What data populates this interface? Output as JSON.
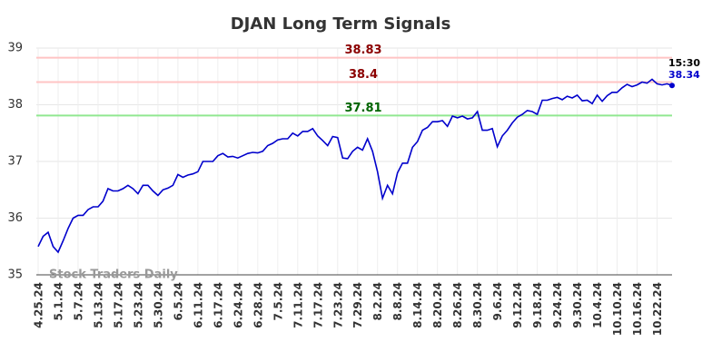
{
  "chart_data": {
    "type": "line",
    "title": "DJAN Long Term Signals",
    "categories": [
      "4.25.24",
      null,
      null,
      null,
      "5.1.24",
      null,
      null,
      null,
      "5.7.24",
      null,
      null,
      null,
      "5.13.24",
      null,
      null,
      null,
      "5.17.24",
      null,
      null,
      null,
      "5.23.24",
      null,
      null,
      null,
      "5.30.24",
      null,
      null,
      null,
      "6.5.24",
      null,
      null,
      null,
      "6.11.24",
      null,
      null,
      null,
      "6.17.24",
      null,
      null,
      null,
      "6.24.24",
      null,
      null,
      null,
      "6.28.24",
      null,
      null,
      null,
      "7.5.24",
      null,
      null,
      null,
      "7.11.24",
      null,
      null,
      null,
      "7.17.24",
      null,
      null,
      null,
      "7.23.24",
      null,
      null,
      null,
      "7.29.24",
      null,
      null,
      null,
      "8.2.24",
      null,
      null,
      null,
      "8.8.24",
      null,
      null,
      null,
      "8.14.24",
      null,
      null,
      null,
      "8.20.24",
      null,
      null,
      null,
      "8.26.24",
      null,
      null,
      null,
      "8.30.24",
      null,
      null,
      null,
      "9.6.24",
      null,
      null,
      null,
      "9.12.24",
      null,
      null,
      null,
      "9.18.24",
      null,
      null,
      null,
      "9.24.24",
      null,
      null,
      null,
      "9.30.24",
      null,
      null,
      null,
      "10.4.24",
      null,
      null,
      null,
      "10.10.24",
      null,
      null,
      null,
      "10.16.24",
      null,
      null,
      null,
      "10.22.24",
      null,
      null,
      null
    ],
    "values": [
      35.5,
      35.68,
      35.75,
      35.5,
      35.4,
      35.6,
      35.82,
      36.0,
      36.05,
      36.05,
      36.15,
      36.2,
      36.2,
      36.3,
      36.52,
      36.48,
      36.48,
      36.52,
      36.58,
      36.52,
      36.43,
      36.58,
      36.58,
      36.48,
      36.4,
      36.5,
      36.53,
      36.58,
      36.77,
      36.72,
      36.76,
      36.78,
      36.82,
      37.0,
      37.0,
      37.0,
      37.1,
      37.14,
      37.08,
      37.09,
      37.06,
      37.1,
      37.14,
      37.16,
      37.15,
      37.18,
      37.28,
      37.32,
      37.38,
      37.4,
      37.4,
      37.5,
      37.45,
      37.53,
      37.53,
      37.58,
      37.45,
      37.37,
      37.28,
      37.44,
      37.42,
      37.06,
      37.05,
      37.18,
      37.25,
      37.2,
      37.4,
      37.18,
      36.82,
      36.35,
      36.58,
      36.43,
      36.8,
      36.97,
      36.97,
      37.25,
      37.35,
      37.55,
      37.6,
      37.7,
      37.7,
      37.72,
      37.62,
      37.8,
      37.77,
      37.8,
      37.75,
      37.77,
      37.88,
      37.55,
      37.55,
      37.58,
      37.26,
      37.45,
      37.55,
      37.68,
      37.78,
      37.83,
      37.9,
      37.88,
      37.83,
      38.08,
      38.08,
      38.11,
      38.13,
      38.09,
      38.15,
      38.12,
      38.17,
      38.07,
      38.08,
      38.02,
      38.17,
      38.06,
      38.16,
      38.22,
      38.22,
      38.3,
      38.36,
      38.32,
      38.35,
      38.4,
      38.38,
      38.45,
      38.37,
      38.35,
      38.37,
      38.34
    ],
    "color": "#0000cc",
    "hlines": [
      {
        "value": 38.83,
        "color": "#ffc4c4",
        "label_color": "#8b0000"
      },
      {
        "value": 38.4,
        "color": "#ffc4c4",
        "label_color": "#8b0000"
      },
      {
        "value": 37.81,
        "color": "#90e890",
        "label_color": "#006400"
      }
    ],
    "last_time": "15:30",
    "watermark": "Stock Traders Daily",
    "ylim": [
      35,
      39
    ],
    "yticks": [
      35,
      36,
      37,
      38,
      39
    ],
    "grid": true
  }
}
